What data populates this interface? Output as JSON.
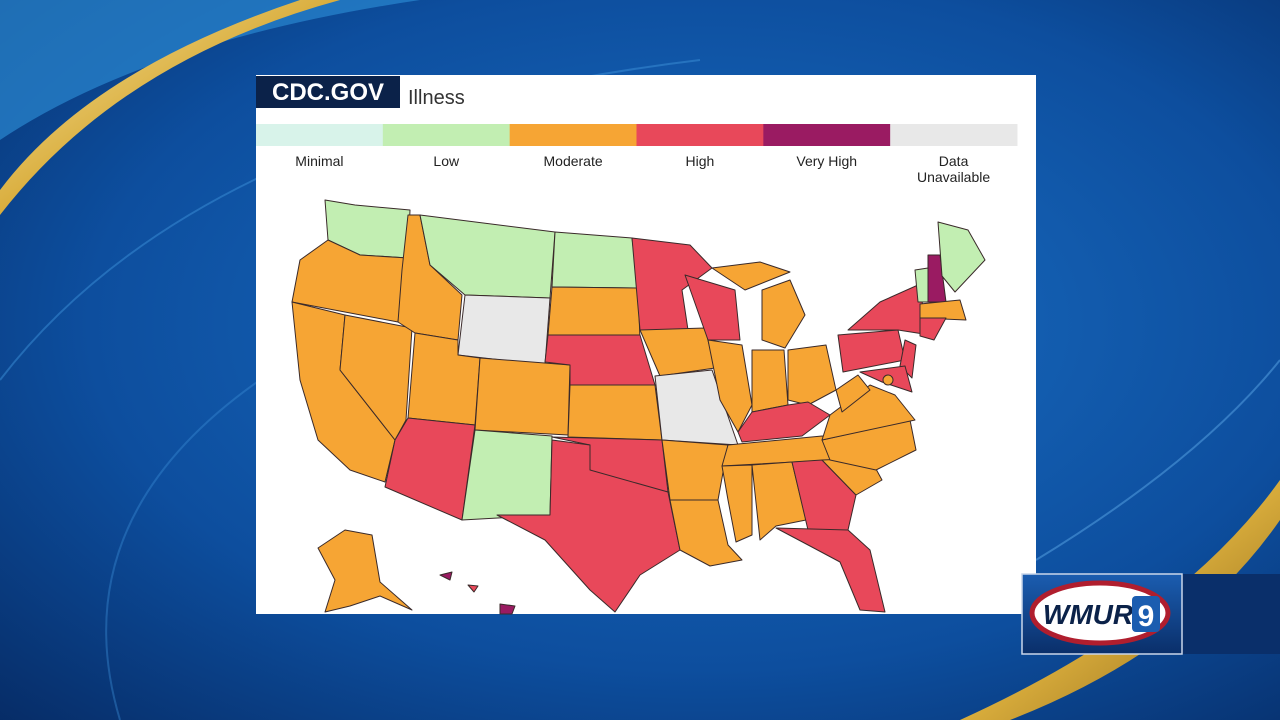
{
  "header": {
    "source": "CDC.GOV",
    "title": "Illness"
  },
  "legend": {
    "items": [
      {
        "label": "Minimal",
        "color": "#d8f3ea"
      },
      {
        "label": "Low",
        "color": "#c2eeb2"
      },
      {
        "label": "Moderate",
        "color": "#f6a534"
      },
      {
        "label": "High",
        "color": "#e8485a"
      },
      {
        "label": "Very High",
        "color": "#9a1b62"
      },
      {
        "lines": [
          "Data",
          "Unavailable"
        ],
        "color": "#e8e8e8"
      }
    ]
  },
  "logo": {
    "text": "WMUR",
    "number": "9"
  }
}
